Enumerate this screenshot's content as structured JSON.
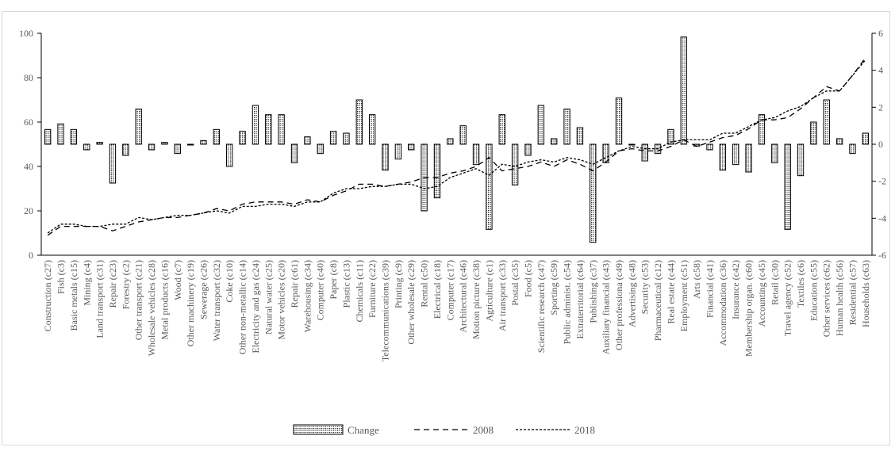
{
  "chart_data": {
    "type": "bar+line",
    "categories": [
      "Construction (c27)",
      "Fish (c3)",
      "Basic metals (c15)",
      "Mining (c4)",
      "Land transport (c31)",
      "Repair (c23)",
      "Forestry (c2)",
      "Other transport (c21)",
      "Wholesale vehicles (c28)",
      "Metal products (c16)",
      "Wood (c7)",
      "Other machinery (c19)",
      "Sewerage (c26)",
      "Water transport (c32)",
      "Coke (c10)",
      "Other non-metallic (c14)",
      "Electricity and gas (c24)",
      "Natural water (c25)",
      "Motor vehicles (c20)",
      "Repair (c61)",
      "Warehousing (c34)",
      "Computer (c40)",
      "Paper (c8)",
      "Plastic (c13)",
      "Chemicals (c11)",
      "Furniture (c22)",
      "Telecommunications (c39)",
      "Printing (c9)",
      "Other wholesale (c29)",
      "Rental (c50)",
      "Electrical (c18)",
      "Computer (c17)",
      "Architectural (c46)",
      "Motion picture (c38)",
      "Agriculture (c1)",
      "Air transport (c33)",
      "Postal (c35)",
      "Food (c5)",
      "Scientific research (c47)",
      "Sporting (c59)",
      "Public administ. (c54)",
      "Extraterritorial (c64)",
      "Publishing (c37)",
      "Auxiliary financial (c43)",
      "Other professiona (c49)",
      "Advertising (c48)",
      "Security (c53)",
      "Pharmaceutical (c12)",
      "Real estate (c44)",
      "Employment (c51)",
      "Arts (c58)",
      "Financial (c41)",
      "Accommodation (c36)",
      "Insurance (c42)",
      "Membership organ. (c60)",
      "Accounting (c45)",
      "Retail (c30)",
      "Travel agency (c52)",
      "Textiles (c6)",
      "Education (c55)",
      "Other services (c62)",
      "Human health (c56)",
      "Residential (c57)",
      "Households (c63)"
    ],
    "series": [
      {
        "name": "Change",
        "kind": "bar",
        "axis": "right",
        "values": [
          0.8,
          1.1,
          0.8,
          -0.3,
          0.1,
          -2.1,
          -0.6,
          1.9,
          -0.3,
          0.1,
          -0.5,
          0.0,
          0.2,
          0.8,
          -1.2,
          0.7,
          2.1,
          1.6,
          1.6,
          -1.0,
          0.4,
          -0.5,
          0.7,
          0.6,
          2.4,
          1.6,
          -1.4,
          -0.8,
          -0.3,
          -3.6,
          -2.9,
          0.3,
          1.0,
          -1.1,
          -4.6,
          1.6,
          -2.2,
          -0.6,
          2.1,
          0.3,
          1.9,
          0.9,
          -5.3,
          -1.0,
          2.5,
          0.0,
          -0.9,
          -0.5,
          0.8,
          5.8,
          -0.1,
          -0.3,
          -1.4,
          -1.1,
          -1.5,
          1.6,
          -1.0,
          -4.6,
          -1.7,
          1.2,
          2.4,
          0.3,
          -0.5,
          0.6
        ]
      },
      {
        "name": "2008",
        "kind": "line",
        "dash": "long",
        "axis": "left",
        "values": [
          9,
          13,
          13,
          13,
          13,
          11,
          13,
          15,
          16,
          17,
          17,
          18,
          19,
          21,
          20,
          23,
          24,
          24,
          24,
          23,
          25,
          24,
          27,
          29,
          32,
          32,
          31,
          32,
          33,
          35,
          35,
          37,
          38,
          40,
          44,
          38,
          39,
          40,
          42,
          40,
          43,
          41,
          38,
          42,
          47,
          48,
          47,
          47,
          49,
          52,
          49,
          51,
          53,
          54,
          57,
          61,
          61,
          62,
          66,
          71,
          76,
          74,
          81,
          89
        ]
      },
      {
        "name": "2018",
        "kind": "line",
        "dash": "short",
        "axis": "left",
        "values": [
          10,
          14,
          14,
          13,
          13,
          14,
          14,
          17,
          16,
          17,
          18,
          18,
          19,
          20,
          19,
          22,
          22,
          23,
          23,
          22,
          24,
          24,
          28,
          30,
          30,
          31,
          31,
          32,
          32,
          30,
          31,
          35,
          37,
          39,
          36,
          41,
          40,
          42,
          43,
          42,
          44,
          43,
          41,
          44,
          47,
          49,
          48,
          48,
          51,
          52,
          52,
          52,
          55,
          55,
          58,
          61,
          62,
          65,
          67,
          71,
          74,
          74,
          81,
          88
        ]
      }
    ],
    "y_left": {
      "ticks": [
        "0",
        "20",
        "40",
        "60",
        "80",
        "100"
      ],
      "ylim": [
        0,
        100
      ]
    },
    "y_right": {
      "ticks": [
        "-6",
        "-4",
        "-2",
        "0",
        "2",
        "4",
        "6"
      ],
      "ylim": [
        -6,
        6
      ]
    },
    "legend": {
      "position": "bottom-center",
      "entries": [
        "Change",
        "2008",
        "2018"
      ]
    },
    "grid": false
  }
}
